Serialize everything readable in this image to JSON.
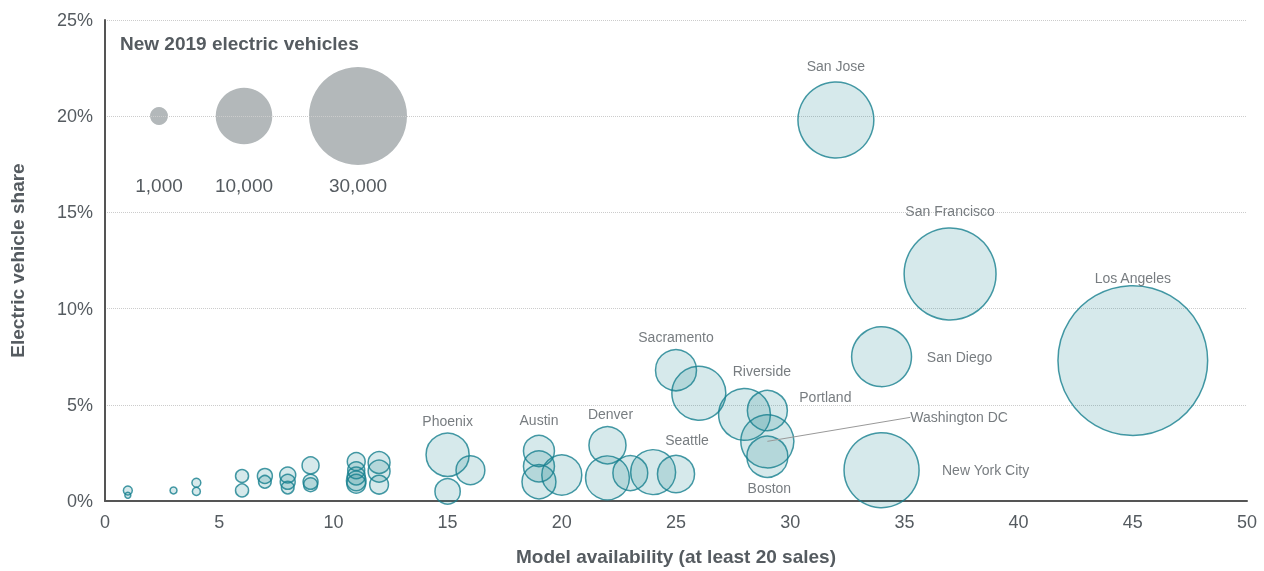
{
  "chart_data": {
    "type": "bubble",
    "xlabel": "Model availability (at least 20 sales)",
    "ylabel": "Electric vehicle share",
    "legend_title": "New 2019 electric vehicles",
    "size_legend": [
      {
        "value": 1000,
        "label": "1,000"
      },
      {
        "value": 10000,
        "label": "10,000"
      },
      {
        "value": 30000,
        "label": "30,000"
      }
    ],
    "xlim": [
      0,
      50
    ],
    "xticks": [
      0,
      5,
      10,
      15,
      20,
      25,
      30,
      35,
      40,
      45,
      50
    ],
    "ylim": [
      0,
      25
    ],
    "yticks": [
      {
        "value": 0,
        "label": "0%"
      },
      {
        "value": 5,
        "label": "5%"
      },
      {
        "value": 10,
        "label": "10%"
      },
      {
        "value": 15,
        "label": "15%"
      },
      {
        "value": 20,
        "label": "20%"
      },
      {
        "value": 25,
        "label": "25%"
      }
    ],
    "grid": "y",
    "series": [
      {
        "color": "#17808f",
        "x": [
          32,
          37,
          45,
          34,
          34,
          25,
          26,
          28,
          29,
          29,
          29,
          15,
          16,
          15,
          19,
          19,
          19,
          20,
          22,
          22,
          23,
          24,
          25,
          1,
          1,
          3,
          4,
          4,
          6,
          6,
          7,
          7,
          8,
          8,
          8,
          9,
          9,
          9,
          11,
          11,
          11,
          11,
          11,
          12,
          12,
          12
        ],
        "values": [
          19.8,
          11.8,
          7.3,
          7.5,
          1.6,
          6.8,
          5.6,
          4.5,
          4.7,
          3.1,
          2.3,
          2.4,
          1.6,
          0.5,
          2.6,
          1.8,
          1.0,
          1.35,
          2.9,
          1.2,
          1.45,
          1.5,
          1.4,
          0.55,
          0.3,
          0.55,
          0.95,
          0.5,
          1.3,
          0.55,
          1.3,
          1.0,
          1.35,
          1.0,
          0.7,
          1.85,
          1.0,
          0.85,
          2.05,
          1.6,
          1.3,
          1.05,
          0.9,
          2.0,
          1.55,
          0.85
        ],
        "sizes": [
          18000,
          26400,
          70000,
          11200,
          17600,
          5250,
          9100,
          8400,
          5000,
          8800,
          5250,
          5800,
          2600,
          2000,
          3000,
          3000,
          3600,
          5000,
          4300,
          6000,
          3800,
          6300,
          4300,
          250,
          110,
          150,
          250,
          200,
          530,
          530,
          700,
          500,
          800,
          700,
          500,
          900,
          700,
          600,
          1000,
          900,
          1000,
          1200,
          1100,
          1500,
          1500,
          1100
        ]
      }
    ],
    "annotations": [
      "San Jose",
      "San Francisco",
      "Los Angeles",
      "San Diego",
      "New York City",
      {
        "text": "Sacramento",
        "x": 25,
        "y": 6.8
      },
      {
        "text": "Riverside",
        "x": 26,
        "y": 5.6
      },
      {
        "text": "Portland",
        "x": 29,
        "y": 4.7
      },
      {
        "text": "Washington DC",
        "x": 29,
        "y": 3.1
      },
      {
        "text": "Boston",
        "x": 29,
        "y": 2.3
      },
      {
        "text": "Phoenix",
        "x": 15,
        "y": 2.4
      },
      {
        "text": "Austin",
        "x": 19,
        "y": 2.6
      },
      {
        "text": "Denver",
        "x": 22,
        "y": 2.9
      },
      {
        "text": "Seattle",
        "x": 25,
        "y": 1.4
      }
    ]
  }
}
